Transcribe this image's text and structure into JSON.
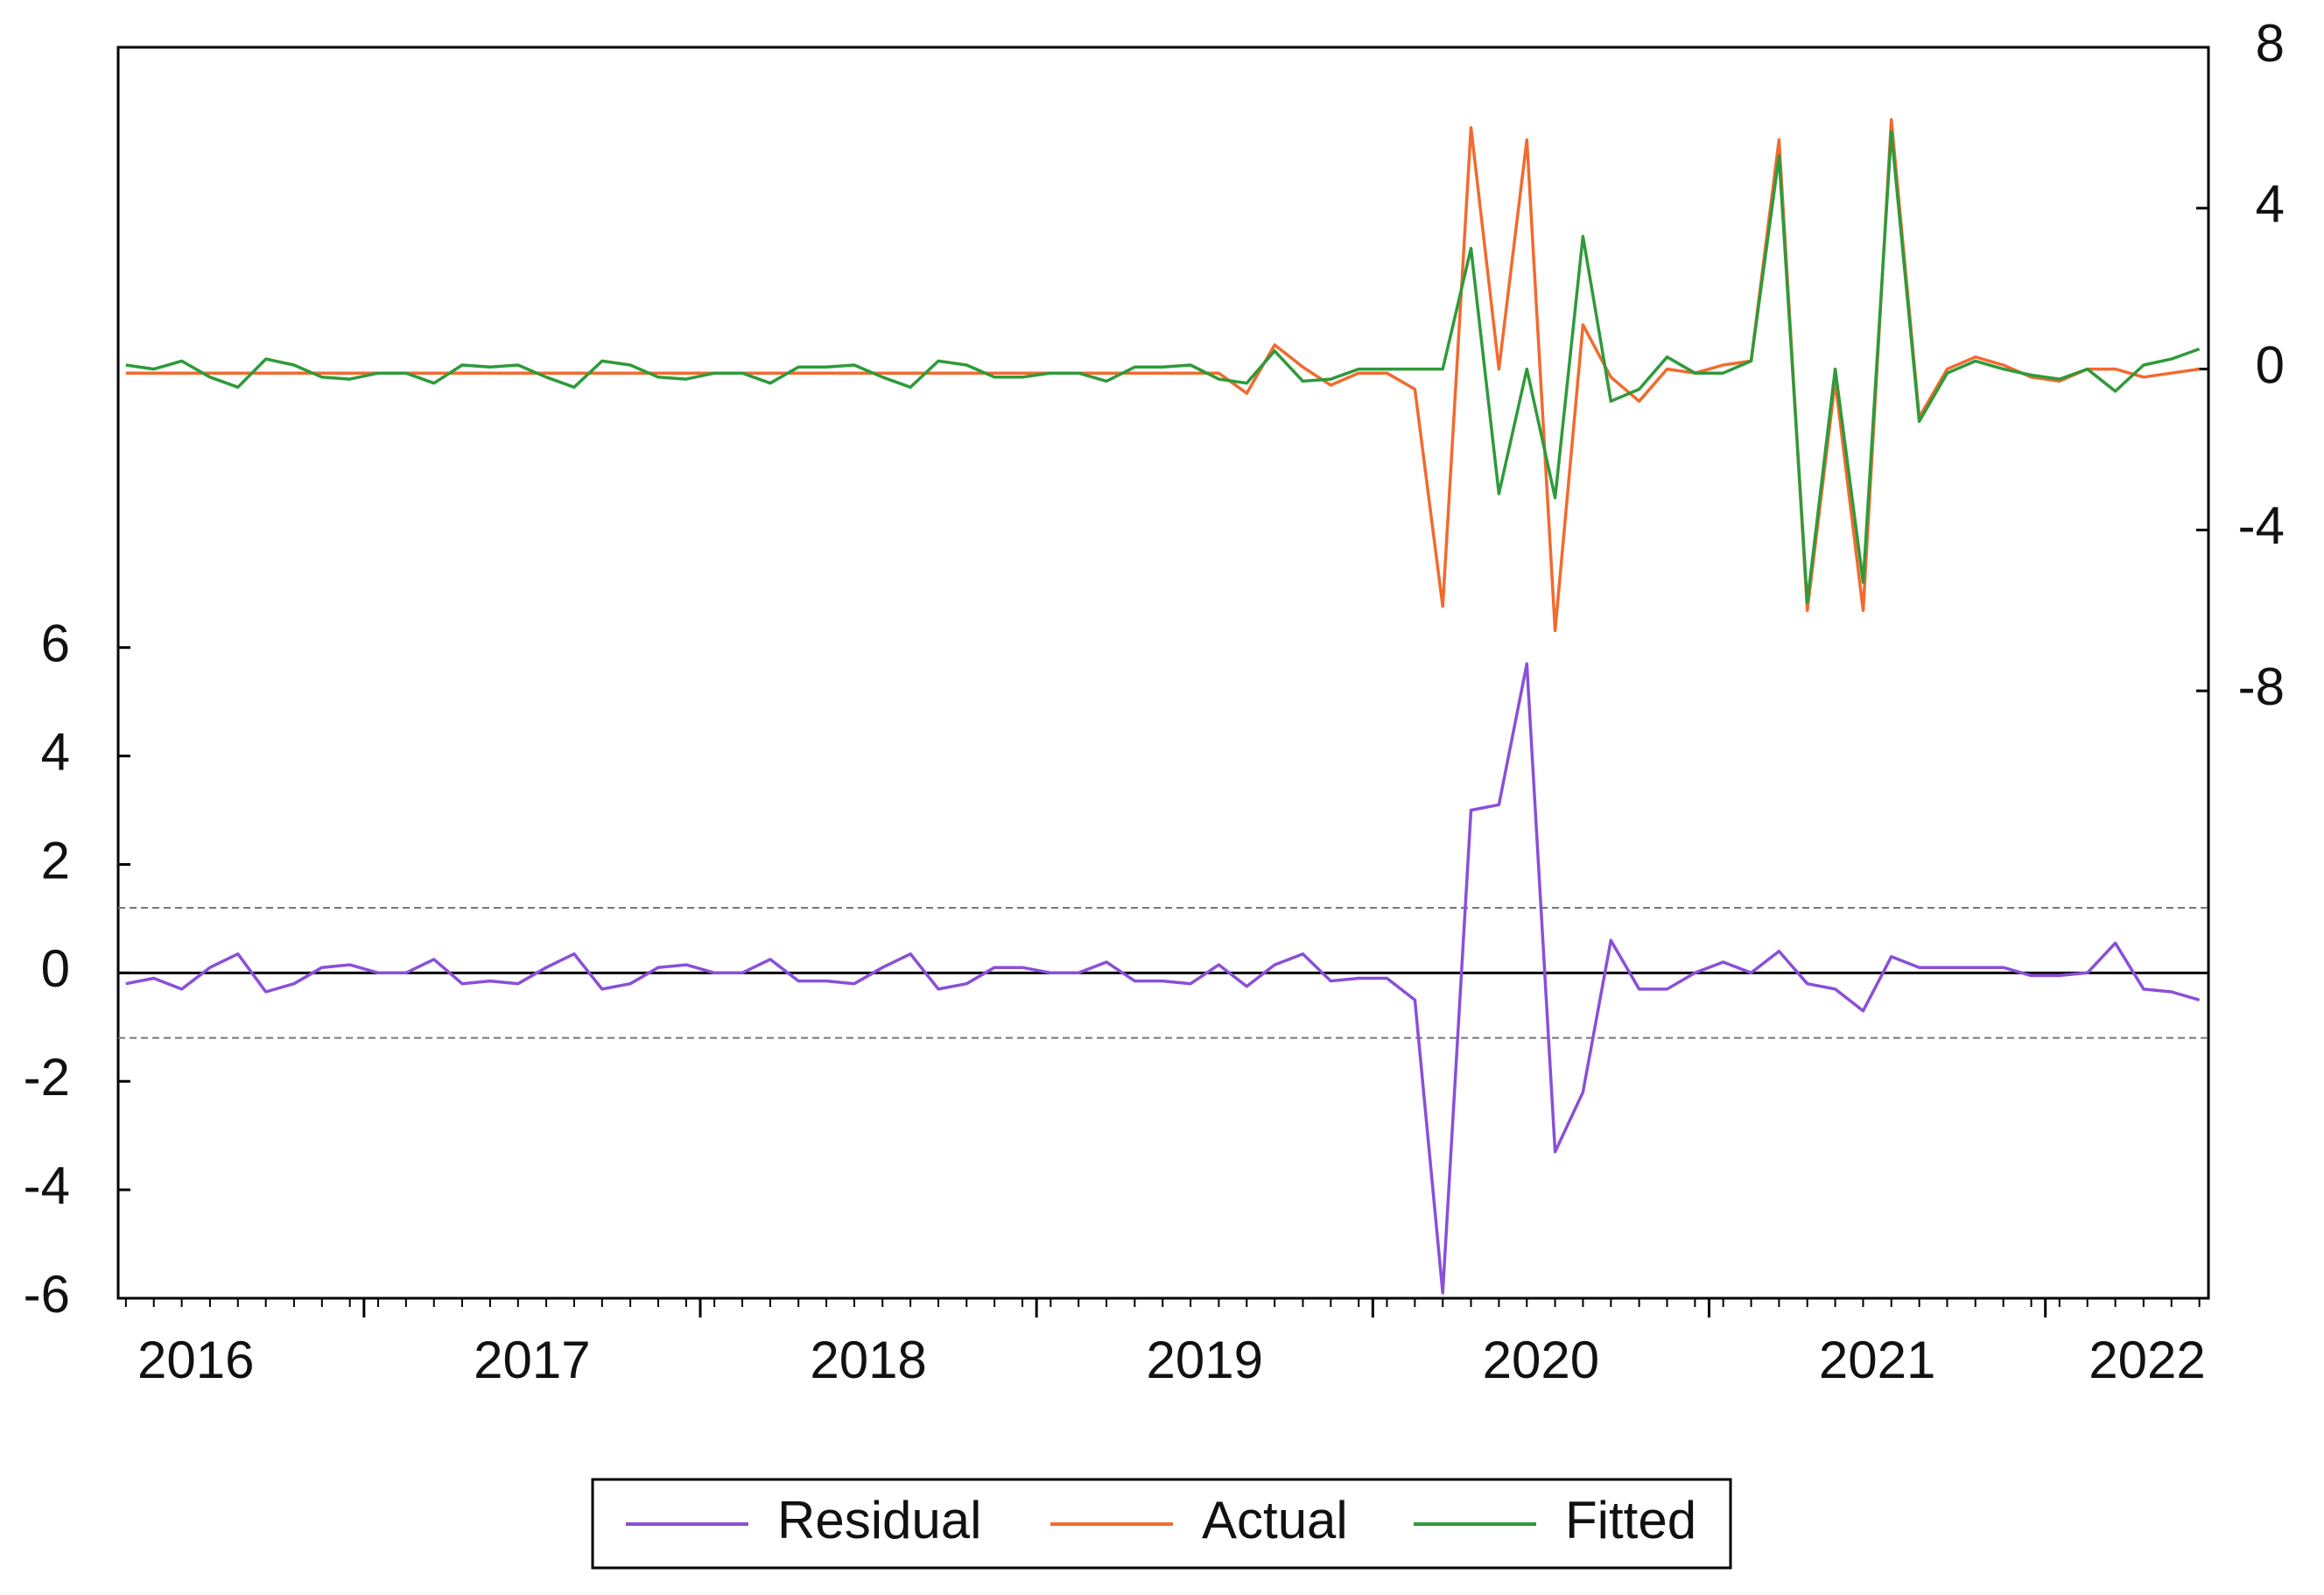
{
  "chart_data": {
    "type": "line",
    "x": [
      2016.292,
      2016.375,
      2016.458,
      2016.542,
      2016.625,
      2016.708,
      2016.792,
      2016.875,
      2016.958,
      2017.042,
      2017.125,
      2017.208,
      2017.292,
      2017.375,
      2017.458,
      2017.542,
      2017.625,
      2017.708,
      2017.792,
      2017.875,
      2017.958,
      2018.042,
      2018.125,
      2018.208,
      2018.292,
      2018.375,
      2018.458,
      2018.542,
      2018.625,
      2018.708,
      2018.792,
      2018.875,
      2018.958,
      2019.042,
      2019.125,
      2019.208,
      2019.292,
      2019.375,
      2019.458,
      2019.542,
      2019.625,
      2019.708,
      2019.792,
      2019.875,
      2019.958,
      2020.042,
      2020.125,
      2020.208,
      2020.292,
      2020.375,
      2020.458,
      2020.542,
      2020.625,
      2020.708,
      2020.792,
      2020.875,
      2020.958,
      2021.042,
      2021.125,
      2021.208,
      2021.292,
      2021.375,
      2021.458,
      2021.542,
      2021.625,
      2021.708,
      2021.792,
      2021.875,
      2021.958,
      2022.042,
      2022.125,
      2022.208,
      2022.292,
      2022.375,
      2022.458
    ],
    "series": [
      {
        "name": "Residual",
        "color": "#8a4fd8",
        "axis": "y",
        "values": [
          -0.2,
          -0.1,
          -0.3,
          0.1,
          0.35,
          -0.35,
          -0.2,
          0.1,
          0.15,
          0,
          0,
          0.25,
          -0.2,
          -0.15,
          -0.2,
          0.1,
          0.35,
          -0.3,
          -0.2,
          0.1,
          0.15,
          0,
          0,
          0.25,
          -0.15,
          -0.15,
          -0.2,
          0.1,
          0.35,
          -0.3,
          -0.2,
          0.1,
          0.1,
          0,
          0,
          0.2,
          -0.15,
          -0.15,
          -0.2,
          0.15,
          -0.25,
          0.15,
          0.35,
          -0.15,
          -0.1,
          -0.1,
          -0.5,
          -5.9,
          3.0,
          3.1,
          5.7,
          -3.3,
          -2.2,
          0.6,
          -0.3,
          -0.3,
          0,
          0.2,
          0,
          0.4,
          -0.2,
          -0.3,
          -0.7,
          0.3,
          0.1,
          0.1,
          0.1,
          0.1,
          -0.05,
          -0.05,
          0,
          0.55,
          -0.3,
          -0.35,
          -0.5
        ]
      },
      {
        "name": "Actual",
        "color": "#f26a2e",
        "axis": "y2",
        "values": [
          -0.1,
          -0.1,
          -0.1,
          -0.1,
          -0.1,
          -0.1,
          -0.1,
          -0.1,
          -0.1,
          -0.1,
          -0.1,
          -0.1,
          -0.1,
          -0.1,
          -0.1,
          -0.1,
          -0.1,
          -0.1,
          -0.1,
          -0.1,
          -0.1,
          -0.1,
          -0.1,
          -0.1,
          -0.1,
          -0.1,
          -0.1,
          -0.1,
          -0.1,
          -0.1,
          -0.1,
          -0.1,
          -0.1,
          -0.1,
          -0.1,
          -0.1,
          -0.1,
          -0.1,
          -0.1,
          -0.1,
          -0.6,
          0.6,
          0.05,
          -0.4,
          -0.1,
          -0.1,
          -0.5,
          -5.9,
          6.0,
          0,
          5.7,
          -6.5,
          1.1,
          -0.2,
          -0.8,
          0,
          -0.1,
          0.1,
          0.2,
          5.7,
          -6.0,
          -0.3,
          -6.0,
          6.2,
          -1.2,
          0,
          0.3,
          0.1,
          -0.2,
          -0.3,
          0,
          0,
          -0.2,
          -0.1,
          0
        ]
      },
      {
        "name": "Fitted",
        "color": "#2e9a3a",
        "axis": "y2",
        "values": [
          0.1,
          0,
          0.2,
          -0.2,
          -0.45,
          0.25,
          0.1,
          -0.2,
          -0.25,
          -0.1,
          -0.1,
          -0.35,
          0.1,
          0.05,
          0.1,
          -0.2,
          -0.45,
          0.2,
          0.1,
          -0.2,
          -0.25,
          -0.1,
          -0.1,
          -0.35,
          0.05,
          0.05,
          0.1,
          -0.2,
          -0.45,
          0.2,
          0.1,
          -0.2,
          -0.2,
          -0.1,
          -0.1,
          -0.3,
          0.05,
          0.05,
          0.1,
          -0.25,
          -0.35,
          0.45,
          -0.3,
          -0.25,
          0,
          0,
          0,
          0,
          3.0,
          -3.1,
          0,
          -3.2,
          3.3,
          -0.8,
          -0.5,
          0.3,
          -0.1,
          -0.1,
          0.2,
          5.3,
          -5.8,
          0,
          -5.3,
          5.9,
          -1.3,
          -0.1,
          0.2,
          0,
          -0.15,
          -0.25,
          0,
          -0.55,
          0.1,
          0.25,
          0.5
        ]
      }
    ],
    "xlim": [
      2016.269,
      2022.485
    ],
    "xticks": [
      {
        "value": 2016.5,
        "label": "2016"
      },
      {
        "value": 2017.5,
        "label": "2017"
      },
      {
        "value": 2018.5,
        "label": "2018"
      },
      {
        "value": 2019.5,
        "label": "2019"
      },
      {
        "value": 2020.5,
        "label": "2020"
      },
      {
        "value": 2021.5,
        "label": "2021"
      },
      {
        "value": 2022.5,
        "label": "2022"
      }
    ],
    "ylim": [
      -6,
      17.07
    ],
    "yticks": [
      -6,
      -4,
      -2,
      0,
      2,
      4,
      6
    ],
    "y2lim": [
      -23.1,
      8
    ],
    "y2ticks": [
      -8,
      -4,
      0,
      4,
      8
    ],
    "reference_lines": [
      {
        "value": 0,
        "style": "solid"
      },
      {
        "value": 1.2,
        "style": "dashed"
      },
      {
        "value": -1.2,
        "style": "dashed"
      }
    ],
    "legend": "bottom"
  }
}
